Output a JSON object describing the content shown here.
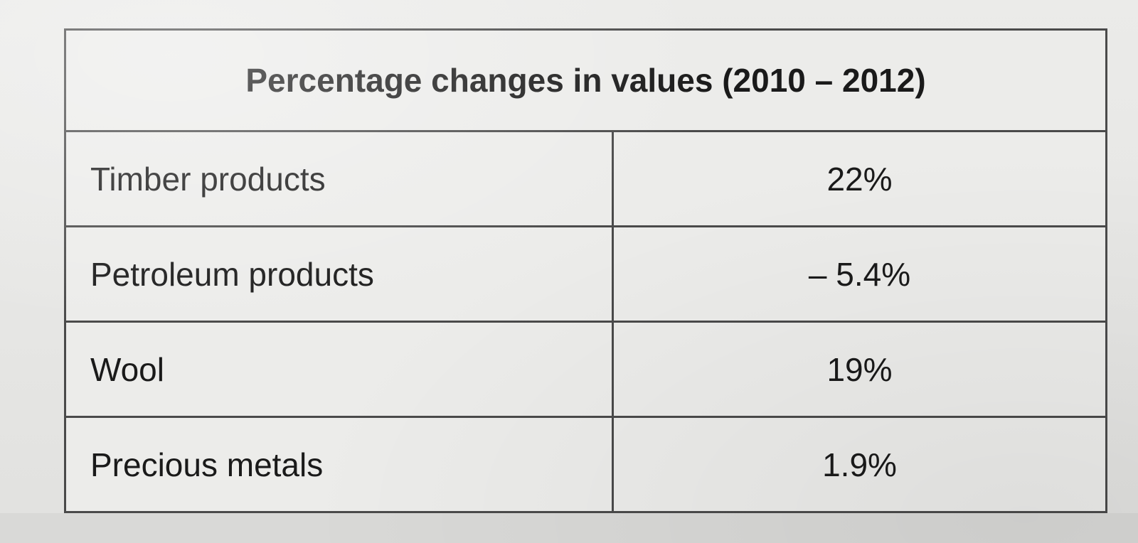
{
  "chart_data": {
    "type": "table",
    "title": "Percentage changes in values (2010 – 2012)",
    "rows": [
      {
        "label": "Timber products",
        "value": 22,
        "display": "22%"
      },
      {
        "label": "Petroleum products",
        "value": -5.4,
        "display": "– 5.4%"
      },
      {
        "label": "Wool",
        "value": 19,
        "display": "19%"
      },
      {
        "label": "Precious metals",
        "value": 1.9,
        "display": "1.9%"
      }
    ]
  }
}
